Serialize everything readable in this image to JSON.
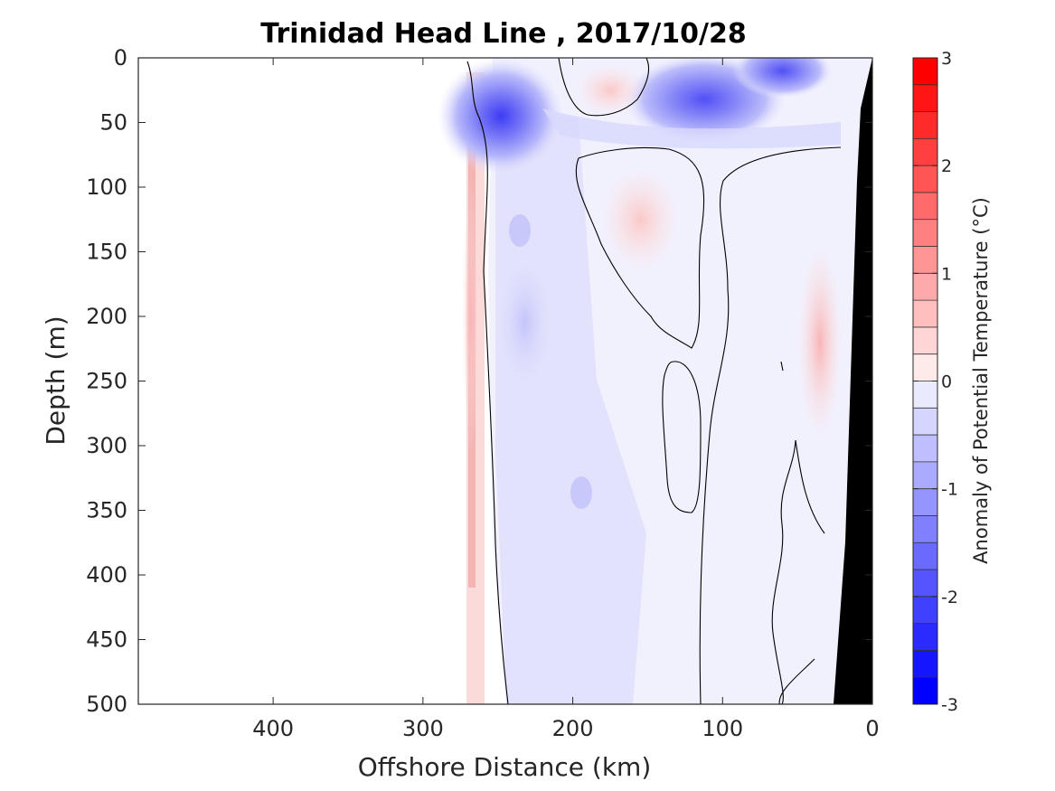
{
  "chart_data": {
    "type": "heatmap",
    "title": "Trinidad Head Line , 2017/10/28",
    "xlabel": "Offshore Distance (km)",
    "ylabel": "Depth (m)",
    "colorbar_label": "Anomaly of Potential Temperature (°C)",
    "xlim": [
      490,
      0
    ],
    "ylim": [
      500,
      0
    ],
    "x_ticks": [
      400,
      300,
      200,
      100,
      0
    ],
    "y_ticks": [
      0,
      50,
      100,
      150,
      200,
      250,
      300,
      350,
      400,
      450,
      500
    ],
    "colorbar_ticks": [
      3,
      2,
      1,
      0,
      -1,
      -2,
      -3
    ],
    "colorbar_range": [
      -3,
      3
    ],
    "colorbar_levels": 24,
    "colormap": {
      "low": "#0000ff",
      "mid": "#ffffff",
      "high": "#ff0000"
    },
    "bathymetry_color": "#000000",
    "contour_level": 0,
    "anomaly_features": [
      {
        "sign": "negative",
        "center_x_km": 248,
        "center_depth_m": 45,
        "peak": -2.2
      },
      {
        "sign": "negative",
        "center_x_km": 112,
        "center_depth_m": 32,
        "peak": -1.8
      },
      {
        "sign": "negative",
        "center_x_km": 60,
        "center_depth_m": 10,
        "peak": -1.2
      },
      {
        "sign": "negative",
        "center_x_km": 232,
        "center_depth_m": 205,
        "peak": -0.6
      },
      {
        "sign": "positive",
        "center_x_km": 175,
        "center_depth_m": 25,
        "peak": 0.5
      },
      {
        "sign": "positive",
        "center_x_km": 155,
        "center_depth_m": 125,
        "peak": 0.4
      },
      {
        "sign": "positive",
        "center_x_km": 35,
        "center_depth_m": 220,
        "peak": 0.8
      },
      {
        "sign": "positive",
        "center_x_km": 268,
        "center_depth_m": 200,
        "peak": 0.6
      }
    ]
  }
}
